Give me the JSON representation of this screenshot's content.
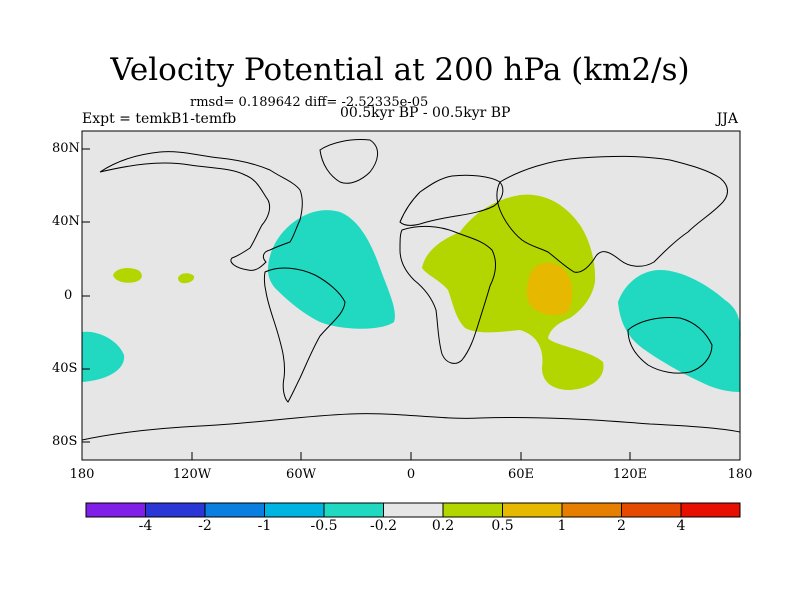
{
  "header": {
    "title": "Velocity Potential at 200 hPa (km2/s)",
    "stats": "rmsd= 0.189642 diff= -2.52335e-05",
    "experiment": "Expt = temkB1-temfb",
    "period": "00.5kyr BP - 00.5kyr BP",
    "season": "JJA"
  },
  "axes": {
    "lat_labels": [
      "80N",
      "40N",
      "0",
      "40S",
      "80S"
    ],
    "lon_labels": [
      "180",
      "120W",
      "60W",
      "0",
      "60E",
      "120E",
      "180"
    ]
  },
  "colorbar": {
    "labels": [
      "-4",
      "-2",
      "-1",
      "-0.5",
      "-0.2",
      "0.2",
      "0.5",
      "1",
      "2",
      "4"
    ],
    "colors": [
      "#7f1fe8",
      "#2a36d6",
      "#0a7fe0",
      "#00b4e2",
      "#20d9c0",
      "#e6e6e6",
      "#b3d600",
      "#e6b800",
      "#e67e00",
      "#e64a00",
      "#e60f00"
    ]
  },
  "colors": {
    "ocean": "#e6e6e6",
    "neg_weak": "#20d9c0",
    "pos_weak": "#b3d600",
    "pos_mid": "#e6b800"
  }
}
